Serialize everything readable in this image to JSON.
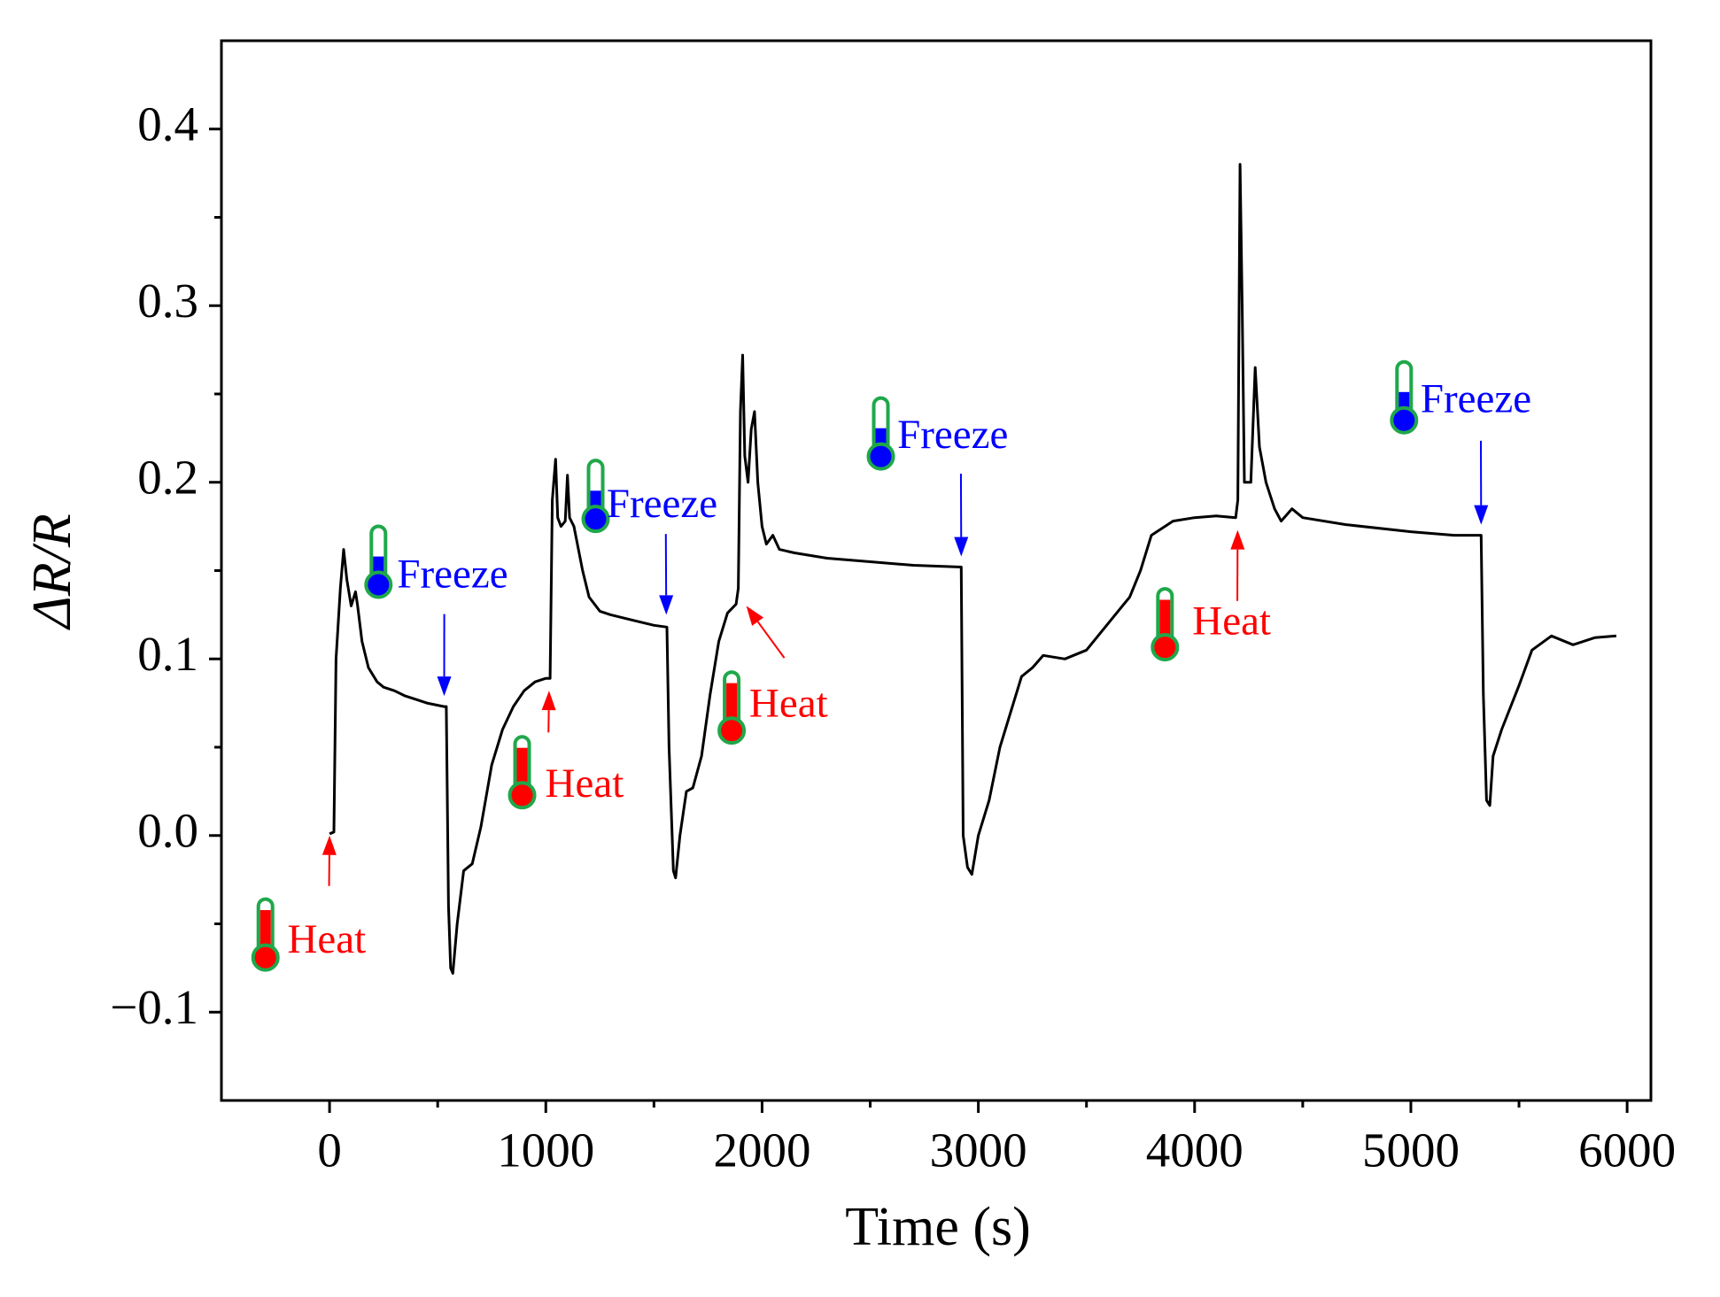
{
  "chart_data": {
    "type": "line",
    "xlabel": "Time (s)",
    "ylabel": "ΔR/R",
    "xlim": [
      -500,
      6110
    ],
    "ylim": [
      -0.15,
      0.45
    ],
    "xticks": [
      0,
      1000,
      2000,
      3000,
      4000,
      5000,
      6000
    ],
    "xminorticks": [
      500,
      1500,
      2500,
      3500,
      4500,
      5500
    ],
    "yticks": [
      {
        "value": -0.1,
        "label": "−0.1"
      },
      {
        "value": 0,
        "label": "0.0"
      },
      0.1,
      0.2,
      0.3,
      0.4
    ],
    "yminorticks": [
      -0.05,
      0.05,
      0.15,
      0.25,
      0.35
    ],
    "series": [
      {
        "color": "#000000",
        "x": [
          0,
          20,
          30,
          50,
          65,
          80,
          100,
          120,
          130,
          150,
          180,
          220,
          250,
          300,
          350,
          400,
          450,
          530,
          540,
          550,
          560,
          570,
          590,
          620,
          660,
          700,
          750,
          800,
          850,
          900,
          950,
          1000,
          1020,
          1030,
          1045,
          1055,
          1070,
          1090,
          1100,
          1110,
          1130,
          1170,
          1200,
          1250,
          1300,
          1400,
          1500,
          1560,
          1570,
          1590,
          1600,
          1620,
          1650,
          1680,
          1720,
          1760,
          1800,
          1840,
          1880,
          1890,
          1900,
          1910,
          1920,
          1935,
          1950,
          1965,
          1980,
          2000,
          2020,
          2050,
          2080,
          2150,
          2300,
          2500,
          2700,
          2921,
          2930,
          2950,
          2970,
          3000,
          3050,
          3100,
          3150,
          3200,
          3250,
          3300,
          3400,
          3500,
          3600,
          3700,
          3750,
          3800,
          3900,
          4000,
          4100,
          4190,
          4200,
          4210,
          4220,
          4230,
          4260,
          4280,
          4300,
          4330,
          4370,
          4400,
          4450,
          4500,
          4700,
          5000,
          5200,
          5325,
          5335,
          5350,
          5365,
          5380,
          5420,
          5500,
          5560,
          5650,
          5750,
          5850,
          5950
        ],
        "values": [
          0.001,
          0.002,
          0.1,
          0.14,
          0.162,
          0.145,
          0.13,
          0.138,
          0.13,
          0.11,
          0.095,
          0.087,
          0.084,
          0.082,
          0.079,
          0.077,
          0.075,
          0.073,
          0.073,
          -0.04,
          -0.075,
          -0.078,
          -0.05,
          -0.02,
          -0.016,
          0.005,
          0.04,
          0.06,
          0.073,
          0.082,
          0.087,
          0.089,
          0.089,
          0.19,
          0.213,
          0.18,
          0.175,
          0.178,
          0.204,
          0.18,
          0.175,
          0.15,
          0.135,
          0.127,
          0.125,
          0.122,
          0.119,
          0.118,
          0.05,
          -0.02,
          -0.024,
          0.0,
          0.025,
          0.027,
          0.045,
          0.08,
          0.11,
          0.126,
          0.131,
          0.14,
          0.24,
          0.272,
          0.215,
          0.2,
          0.23,
          0.24,
          0.2,
          0.175,
          0.165,
          0.17,
          0.162,
          0.16,
          0.157,
          0.155,
          0.153,
          0.152,
          0.0,
          -0.018,
          -0.022,
          0.0,
          0.02,
          0.05,
          0.07,
          0.09,
          0.095,
          0.102,
          0.1,
          0.105,
          0.12,
          0.135,
          0.15,
          0.17,
          0.178,
          0.18,
          0.181,
          0.18,
          0.19,
          0.38,
          0.3,
          0.2,
          0.2,
          0.265,
          0.22,
          0.2,
          0.185,
          0.178,
          0.185,
          0.18,
          0.176,
          0.172,
          0.17,
          0.17,
          0.08,
          0.02,
          0.017,
          0.045,
          0.06,
          0.085,
          0.105,
          0.113,
          0.108,
          0.112,
          0.113
        ]
      }
    ],
    "annotations": [
      {
        "text": "Heat",
        "color": "#ff0000",
        "x": 0,
        "y": 0.0
      },
      {
        "text": "Freeze",
        "color": "#0000ff",
        "x": 530,
        "y": 0.079
      },
      {
        "text": "Heat",
        "color": "#ff0000",
        "x": 1015,
        "y": 0.082
      },
      {
        "text": "Freeze",
        "color": "#0000ff",
        "x": 1557,
        "y": 0.125
      },
      {
        "text": "Heat",
        "color": "#ff0000",
        "x": 1927,
        "y": 0.13
      },
      {
        "text": "Freeze",
        "color": "#0000ff",
        "x": 2921,
        "y": 0.158
      },
      {
        "text": "Heat",
        "color": "#ff0000",
        "x": 4199,
        "y": 0.173
      },
      {
        "text": "Freeze",
        "color": "#0000ff",
        "x": 5325,
        "y": 0.176
      }
    ]
  }
}
